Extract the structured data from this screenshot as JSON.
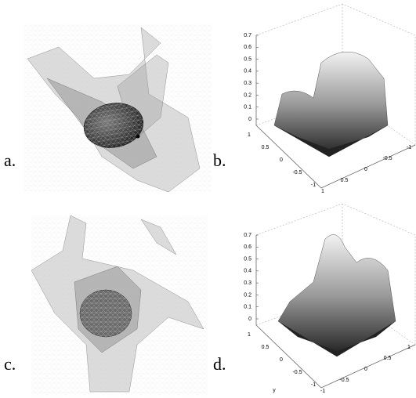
{
  "panels": [
    {
      "label": "a."
    },
    {
      "label": "b."
    },
    {
      "label": "c."
    },
    {
      "label": "d."
    }
  ],
  "plots": [
    {
      "zticks": [
        0,
        0.1,
        0.2,
        0.3,
        0.4,
        0.5,
        0.6,
        0.7
      ],
      "left_ticks": [
        1,
        0.5,
        0,
        -0.5,
        -1
      ],
      "right_ticks": [
        1,
        0.5,
        0,
        -0.5,
        -1
      ]
    },
    {
      "zticks": [
        0,
        0.1,
        0.2,
        0.3,
        0.4,
        0.5,
        0.6,
        0.7
      ],
      "left_ticks": [
        1,
        0.5,
        0,
        -0.5,
        -1
      ],
      "right_ticks": [
        -1,
        -0.5,
        0,
        0.5,
        1
      ],
      "y_label": "y"
    }
  ]
}
